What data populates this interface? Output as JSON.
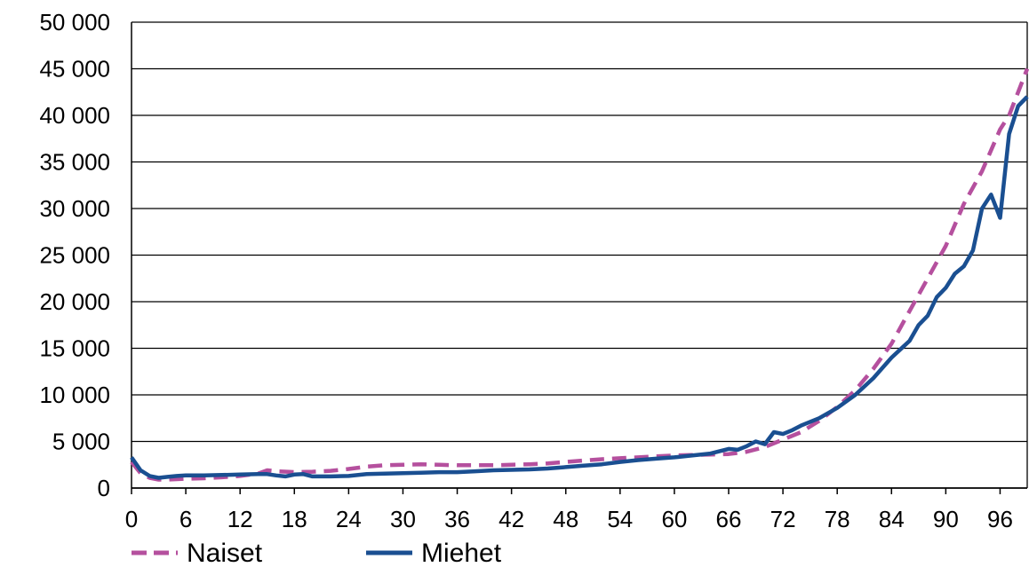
{
  "chart_data": {
    "type": "line",
    "title": "",
    "xlabel": "",
    "ylabel": "",
    "xlim": [
      0,
      99
    ],
    "ylim": [
      0,
      50000
    ],
    "grid": true,
    "legend_position": "bottom",
    "x_ticks": [
      0,
      6,
      12,
      18,
      24,
      30,
      36,
      42,
      48,
      54,
      60,
      66,
      72,
      78,
      84,
      90,
      96
    ],
    "x_tick_labels": [
      "0",
      "6",
      "12",
      "18",
      "24",
      "30",
      "36",
      "42",
      "48",
      "54",
      "60",
      "66",
      "72",
      "78",
      "84",
      "90",
      "96"
    ],
    "y_ticks": [
      0,
      5000,
      10000,
      15000,
      20000,
      25000,
      30000,
      35000,
      40000,
      45000,
      50000
    ],
    "y_tick_labels": [
      "0",
      "5 000",
      "10 000",
      "15 000",
      "20 000",
      "25 000",
      "30 000",
      "35 000",
      "40 000",
      "45 000",
      "50 000"
    ],
    "series": [
      {
        "name": "Naiset",
        "color": "#b5509e",
        "dash": "dashed",
        "x": [
          0,
          1,
          2,
          3,
          4,
          5,
          6,
          8,
          10,
          12,
          14,
          15,
          16,
          18,
          20,
          22,
          24,
          26,
          28,
          30,
          32,
          34,
          36,
          38,
          40,
          42,
          44,
          46,
          48,
          50,
          52,
          54,
          56,
          58,
          60,
          62,
          64,
          66,
          68,
          70,
          72,
          74,
          76,
          78,
          80,
          82,
          84,
          86,
          88,
          90,
          92,
          94,
          96,
          97,
          98,
          99
        ],
        "values": [
          2800,
          1600,
          1100,
          900,
          900,
          950,
          1000,
          1050,
          1150,
          1300,
          1550,
          1900,
          1800,
          1700,
          1750,
          1850,
          2050,
          2300,
          2450,
          2500,
          2550,
          2500,
          2450,
          2450,
          2450,
          2500,
          2550,
          2650,
          2800,
          2950,
          3100,
          3200,
          3300,
          3400,
          3500,
          3550,
          3600,
          3650,
          3900,
          4400,
          5200,
          6000,
          7200,
          8700,
          10500,
          12800,
          15500,
          19000,
          22500,
          26000,
          30500,
          34000,
          38500,
          40000,
          42500,
          45000
        ]
      },
      {
        "name": "Miehet",
        "color": "#1a4f91",
        "dash": "solid",
        "x": [
          0,
          1,
          2,
          3,
          4,
          5,
          6,
          8,
          10,
          12,
          14,
          15,
          16,
          17,
          18,
          19,
          20,
          22,
          24,
          26,
          28,
          30,
          32,
          34,
          36,
          38,
          40,
          42,
          44,
          46,
          48,
          50,
          52,
          54,
          56,
          58,
          60,
          62,
          64,
          66,
          67,
          68,
          69,
          70,
          71,
          72,
          73,
          74,
          76,
          78,
          80,
          82,
          84,
          86,
          87,
          88,
          89,
          90,
          91,
          92,
          93,
          94,
          95,
          96,
          97,
          98,
          99
        ],
        "values": [
          3300,
          1900,
          1300,
          1100,
          1200,
          1300,
          1350,
          1350,
          1400,
          1450,
          1500,
          1500,
          1350,
          1250,
          1450,
          1500,
          1250,
          1250,
          1300,
          1500,
          1550,
          1600,
          1650,
          1700,
          1700,
          1800,
          1900,
          1950,
          2000,
          2100,
          2250,
          2400,
          2550,
          2800,
          3000,
          3150,
          3300,
          3500,
          3700,
          4200,
          4100,
          4500,
          5000,
          4700,
          6000,
          5800,
          6200,
          6700,
          7500,
          8600,
          10000,
          11800,
          14000,
          15800,
          17500,
          18500,
          20500,
          21500,
          23000,
          23800,
          25500,
          30000,
          31500,
          29000,
          38000,
          41000,
          42000
        ]
      }
    ]
  },
  "legend": {
    "items": [
      {
        "label": "Naiset",
        "color": "#b5509e",
        "dash": "dashed"
      },
      {
        "label": "Miehet",
        "color": "#1a4f91",
        "dash": "solid"
      }
    ]
  }
}
